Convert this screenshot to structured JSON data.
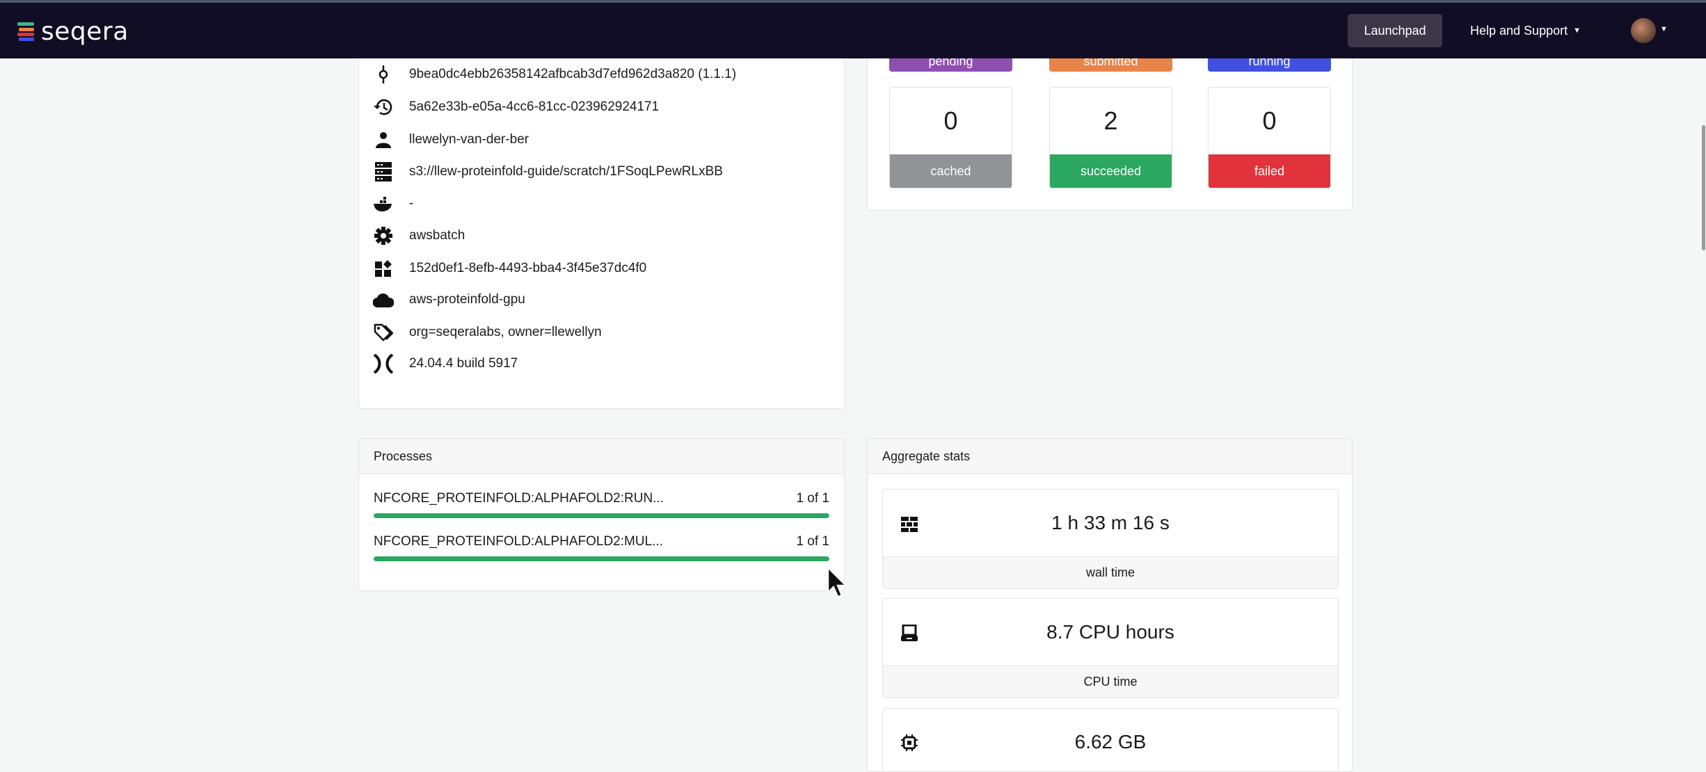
{
  "header": {
    "logo_text": "seqera",
    "launchpad_label": "Launchpad",
    "help_label": "Help and Support"
  },
  "details": [
    {
      "icon": "commit-icon",
      "text": "9bea0dc4ebb26358142afbcab3d7efd962d3a820 (1.1.1)"
    },
    {
      "icon": "history-icon",
      "text": "5a62e33b-e05a-4cc6-81cc-023962924171"
    },
    {
      "icon": "user-icon",
      "text": "llewelyn-van-der-ber"
    },
    {
      "icon": "server-icon",
      "text": "s3://llew-proteinfold-guide/scratch/1FSoqLPewRLxBB"
    },
    {
      "icon": "docker-icon",
      "text": "-"
    },
    {
      "icon": "gear-icon",
      "text": "awsbatch"
    },
    {
      "icon": "widgets-icon",
      "text": "152d0ef1-8efb-4493-bba4-3f45e37dc4f0"
    },
    {
      "icon": "cloud-icon",
      "text": "aws-proteinfold-gpu"
    },
    {
      "icon": "tags-icon",
      "text": "org=seqeralabs, owner=llewellyn"
    },
    {
      "icon": "nextflow-icon",
      "text": "24.04.4 build 5917"
    }
  ],
  "status": {
    "top_row": [
      {
        "label": "pending",
        "color": "#8e4fb0"
      },
      {
        "label": "submitted",
        "color": "#e8844a"
      },
      {
        "label": "running",
        "color": "#4150e0"
      }
    ],
    "bottom_row": [
      {
        "label": "cached",
        "value": "0",
        "color": "#929396"
      },
      {
        "label": "succeeded",
        "value": "2",
        "color": "#2aa760"
      },
      {
        "label": "failed",
        "value": "0",
        "color": "#e2323b"
      }
    ]
  },
  "processes": {
    "title": "Processes",
    "items": [
      {
        "name": "NFCORE_PROTEINFOLD:ALPHAFOLD2:RUN...",
        "count": "1 of 1",
        "progress": 1.0
      },
      {
        "name": "NFCORE_PROTEINFOLD:ALPHAFOLD2:MUL...",
        "count": "1 of 1",
        "progress": 1.0
      }
    ]
  },
  "aggregate": {
    "title": "Aggregate stats",
    "items": [
      {
        "icon": "wall-icon",
        "value": "1 h 33 m 16 s",
        "label": "wall time"
      },
      {
        "icon": "computer-icon",
        "value": "8.7 CPU hours",
        "label": "CPU time"
      },
      {
        "icon": "memory-chip-icon",
        "value": "6.62 GB",
        "label": ""
      }
    ]
  }
}
